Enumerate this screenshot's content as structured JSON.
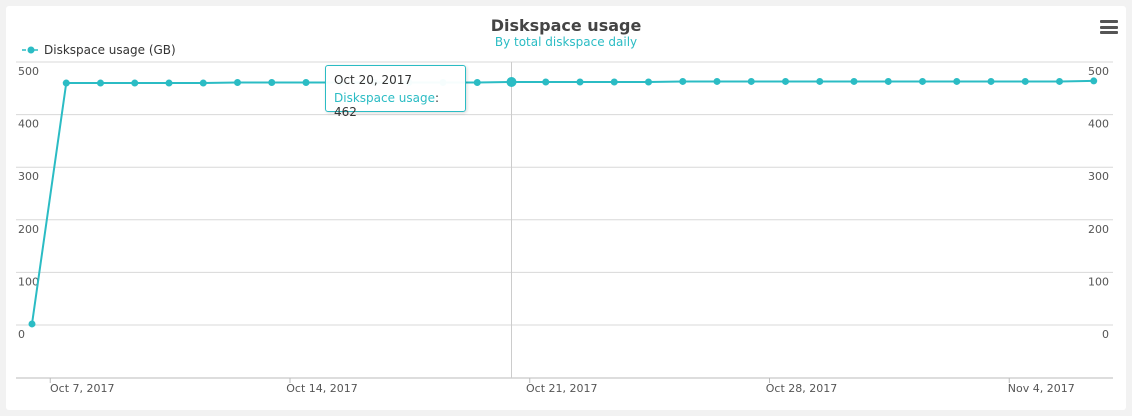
{
  "chart_data": {
    "type": "line",
    "title": "Diskspace usage",
    "subtitle": "By total diskspace daily",
    "series": [
      {
        "name": "Diskspace usage (GB)",
        "x": [
          "2017-10-06",
          "2017-10-07",
          "2017-10-08",
          "2017-10-09",
          "2017-10-10",
          "2017-10-11",
          "2017-10-12",
          "2017-10-13",
          "2017-10-14",
          "2017-10-15",
          "2017-10-16",
          "2017-10-17",
          "2017-10-18",
          "2017-10-19",
          "2017-10-20",
          "2017-10-21",
          "2017-10-22",
          "2017-10-23",
          "2017-10-24",
          "2017-10-25",
          "2017-10-26",
          "2017-10-27",
          "2017-10-28",
          "2017-10-29",
          "2017-10-30",
          "2017-10-31",
          "2017-11-01",
          "2017-11-02",
          "2017-11-03",
          "2017-11-04",
          "2017-11-05",
          "2017-11-06"
        ],
        "values": [
          2,
          460,
          460,
          460,
          460,
          460,
          461,
          461,
          461,
          461,
          461,
          461,
          461,
          461,
          462,
          462,
          462,
          462,
          462,
          463,
          463,
          463,
          463,
          463,
          463,
          463,
          463,
          463,
          463,
          463,
          463,
          464
        ]
      }
    ],
    "yticks": [
      "0",
      "100",
      "200",
      "300",
      "400",
      "500"
    ],
    "xticks": [
      "Oct 7, 2017",
      "Oct 14, 2017",
      "Oct 21, 2017",
      "Oct 28, 2017",
      "Nov 4, 2017"
    ],
    "ylim": [
      0,
      500
    ],
    "grid": true,
    "legend_position": "top-left",
    "color": "#2bbcc4",
    "tooltip": {
      "date": "Oct 20, 2017",
      "series_label": "Diskspace usage",
      "value": "462"
    }
  },
  "menu_icon": "hamburger-menu-icon"
}
